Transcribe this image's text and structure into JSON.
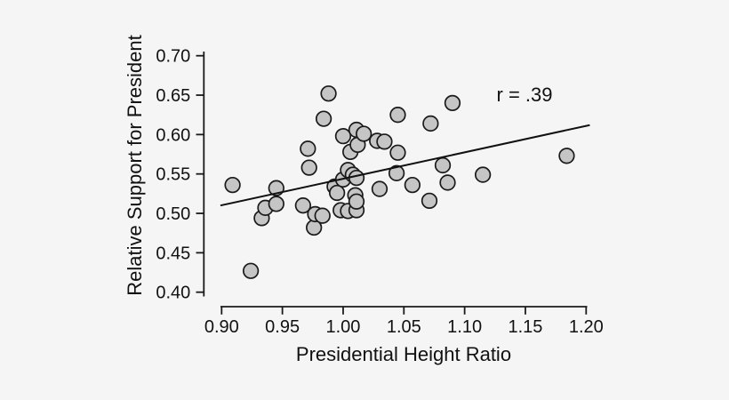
{
  "figure": {
    "background": "#f5f5f5",
    "text_color": "#111111"
  },
  "chart_data": {
    "type": "scatter",
    "title": "",
    "xlabel": "Presidential Height Ratio",
    "ylabel": "Relative Support for President",
    "xlim": [
      0.9,
      1.2
    ],
    "ylim": [
      0.4,
      0.7
    ],
    "grid": false,
    "legend": false,
    "x_ticks": [
      0.9,
      0.95,
      1.0,
      1.05,
      1.1,
      1.15,
      1.2
    ],
    "x_tick_labels": [
      "0.90",
      "0.95",
      "1.00",
      "1.05",
      "1.10",
      "1.15",
      "1.20"
    ],
    "y_ticks": [
      0.4,
      0.45,
      0.5,
      0.55,
      0.6,
      0.65,
      0.7
    ],
    "y_tick_labels": [
      "0.40",
      "0.45",
      "0.50",
      "0.55",
      "0.60",
      "0.65",
      "0.70"
    ],
    "annotation": {
      "text": "r = .39",
      "x": 1.149,
      "y": 0.651
    },
    "correlation": 0.39,
    "trend_line": {
      "x1": 0.899,
      "y1": 0.51,
      "x2": 1.203,
      "y2": 0.612
    },
    "point_style": {
      "fill": "#c5c5c5",
      "stroke": "#1a1a1a",
      "stroke_width": 1.7,
      "radius": 8.3
    },
    "axis_color": "#1a1a1a",
    "points": [
      [
        0.909,
        0.536
      ],
      [
        0.924,
        0.427
      ],
      [
        0.933,
        0.494
      ],
      [
        0.936,
        0.507
      ],
      [
        0.945,
        0.512
      ],
      [
        0.945,
        0.532
      ],
      [
        0.967,
        0.51
      ],
      [
        0.971,
        0.582
      ],
      [
        0.972,
        0.558
      ],
      [
        0.976,
        0.482
      ],
      [
        0.977,
        0.499
      ],
      [
        0.983,
        0.497
      ],
      [
        0.984,
        0.62
      ],
      [
        0.988,
        0.652
      ],
      [
        0.993,
        0.534
      ],
      [
        0.995,
        0.526
      ],
      [
        0.998,
        0.504
      ],
      [
        1.0,
        0.543
      ],
      [
        1.0,
        0.598
      ],
      [
        1.004,
        0.503
      ],
      [
        1.004,
        0.555
      ],
      [
        1.006,
        0.578
      ],
      [
        1.008,
        0.549
      ],
      [
        1.01,
        0.523
      ],
      [
        1.011,
        0.504
      ],
      [
        1.011,
        0.515
      ],
      [
        1.011,
        0.545
      ],
      [
        1.011,
        0.606
      ],
      [
        1.012,
        0.587
      ],
      [
        1.017,
        0.601
      ],
      [
        1.028,
        0.592
      ],
      [
        1.03,
        0.531
      ],
      [
        1.034,
        0.591
      ],
      [
        1.044,
        0.551
      ],
      [
        1.045,
        0.577
      ],
      [
        1.045,
        0.625
      ],
      [
        1.057,
        0.536
      ],
      [
        1.071,
        0.516
      ],
      [
        1.072,
        0.614
      ],
      [
        1.082,
        0.561
      ],
      [
        1.086,
        0.539
      ],
      [
        1.09,
        0.64
      ],
      [
        1.115,
        0.549
      ],
      [
        1.184,
        0.573
      ]
    ]
  }
}
